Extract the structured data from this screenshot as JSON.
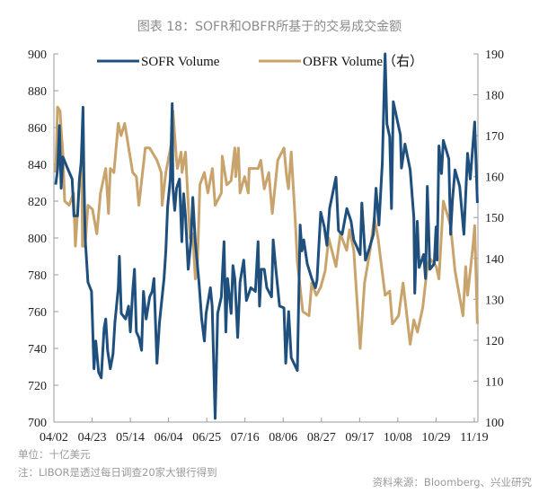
{
  "colors": {
    "sofr": "#1f4f7d",
    "obfr": "#c8a46c",
    "axis": "#9a9a9a"
  },
  "notes": {
    "unit": "单位：十亿美元",
    "note": "注：LIBOR是透过每日调查20家大银行得到",
    "source": "资料来源：Bloomberg、兴业研究"
  },
  "chart_data": {
    "type": "line",
    "title": "图表 18：SOFR和OBFR所基于的交易成交金额",
    "xlabel": "",
    "ylabel": "",
    "y2label": "",
    "x_unit": "days since 04/02",
    "xlim": [
      0,
      233
    ],
    "ylim": [
      700,
      900
    ],
    "y2lim": [
      100,
      190
    ],
    "grid": false,
    "legend_position": "top",
    "x_ticks": [
      {
        "day": 0,
        "label": "04/02"
      },
      {
        "day": 21,
        "label": "04/23"
      },
      {
        "day": 42,
        "label": "05/14"
      },
      {
        "day": 63,
        "label": "06/04"
      },
      {
        "day": 84,
        "label": "06/25"
      },
      {
        "day": 105,
        "label": "07/16"
      },
      {
        "day": 126,
        "label": "08/06"
      },
      {
        "day": 147,
        "label": "08/27"
      },
      {
        "day": 168,
        "label": "09/17"
      },
      {
        "day": 189,
        "label": "10/08"
      },
      {
        "day": 210,
        "label": "10/29"
      },
      {
        "day": 231,
        "label": "11/19"
      }
    ],
    "y_ticks": [
      "700",
      "720",
      "740",
      "760",
      "780",
      "800",
      "820",
      "840",
      "860",
      "880",
      "900"
    ],
    "y2_ticks": [
      "100",
      "110",
      "120",
      "130",
      "140",
      "150",
      "160",
      "170",
      "180",
      "190"
    ],
    "series": [
      {
        "name": "SOFR Volume",
        "axis": "left",
        "points": [
          [
            1,
            829
          ],
          [
            2,
            837
          ],
          [
            3,
            861
          ],
          [
            4,
            827
          ],
          [
            5,
            844
          ],
          [
            7,
            839
          ],
          [
            10,
            832
          ],
          [
            11,
            812
          ],
          [
            13,
            812
          ],
          [
            14,
            832
          ],
          [
            15,
            841
          ],
          [
            16,
            871
          ],
          [
            16.5,
            834
          ],
          [
            17.2,
            800
          ],
          [
            18.7,
            776
          ],
          [
            20.7,
            771
          ],
          [
            22,
            729
          ],
          [
            23,
            744
          ],
          [
            24.6,
            727
          ],
          [
            26,
            724
          ],
          [
            27.6,
            751
          ],
          [
            28.5,
            756
          ],
          [
            29.5,
            739
          ],
          [
            31,
            729
          ],
          [
            32.5,
            737
          ],
          [
            33.5,
            754
          ],
          [
            35.4,
            773
          ],
          [
            36,
            790
          ],
          [
            37,
            759
          ],
          [
            39.4,
            756
          ],
          [
            41,
            763
          ],
          [
            42,
            749
          ],
          [
            43.3,
            771
          ],
          [
            44.3,
            783
          ],
          [
            45.3,
            749
          ],
          [
            46.7,
            746
          ],
          [
            48.2,
            739
          ],
          [
            49.2,
            771
          ],
          [
            50.7,
            756
          ],
          [
            52.6,
            768
          ],
          [
            54,
            771
          ],
          [
            55,
            778
          ],
          [
            56.6,
            732
          ],
          [
            58,
            754
          ],
          [
            60.5,
            778
          ],
          [
            61.5,
            793
          ],
          [
            62.5,
            817
          ],
          [
            64,
            832
          ],
          [
            65,
            873
          ],
          [
            65.4,
            827
          ],
          [
            66.4,
            815
          ],
          [
            67.4,
            827
          ],
          [
            69,
            832
          ],
          [
            70.3,
            798
          ],
          [
            71.3,
            824
          ],
          [
            72.3,
            812
          ],
          [
            73.8,
            783
          ],
          [
            75.3,
            798
          ],
          [
            76.3,
            822
          ],
          [
            77.7,
            798
          ],
          [
            79.7,
            776
          ],
          [
            81.2,
            756
          ],
          [
            82.7,
            744
          ],
          [
            83.6,
            759
          ],
          [
            86,
            773
          ],
          [
            87,
            763
          ],
          [
            88.6,
            702
          ],
          [
            90,
            759
          ],
          [
            92,
            768
          ],
          [
            93.5,
            798
          ],
          [
            94.5,
            749
          ],
          [
            95.4,
            778
          ],
          [
            97.4,
            759
          ],
          [
            98.4,
            785
          ],
          [
            99.4,
            778
          ],
          [
            101,
            746
          ],
          [
            102.3,
            776
          ],
          [
            104.3,
            788
          ],
          [
            105.8,
            766
          ],
          [
            108.2,
            773
          ],
          [
            110.7,
            771
          ],
          [
            112.2,
            798
          ],
          [
            113,
            763
          ],
          [
            114,
            783
          ],
          [
            115.6,
            783
          ],
          [
            117,
            773
          ],
          [
            119.6,
            768
          ],
          [
            120.5,
            799
          ],
          [
            122,
            783
          ],
          [
            124,
            763
          ],
          [
            126.4,
            762
          ],
          [
            127.4,
            732
          ],
          [
            129,
            760
          ],
          [
            130.4,
            735
          ],
          [
            133.8,
            728
          ],
          [
            135.3,
            807
          ],
          [
            136.3,
            793
          ],
          [
            137.3,
            799
          ],
          [
            139.2,
            786
          ],
          [
            141.7,
            778
          ],
          [
            143.7,
            773
          ],
          [
            144.6,
            777
          ],
          [
            146.6,
            814
          ],
          [
            148.6,
            806
          ],
          [
            150,
            796
          ],
          [
            151.5,
            816
          ],
          [
            155,
            833
          ],
          [
            156.4,
            804
          ],
          [
            158.4,
            802
          ],
          [
            161,
            816
          ],
          [
            163.3,
            809
          ],
          [
            164.8,
            799
          ],
          [
            168.3,
            791
          ],
          [
            169.2,
            819
          ],
          [
            171.2,
            788
          ],
          [
            173.2,
            794
          ],
          [
            175.6,
            802
          ],
          [
            177,
            827
          ],
          [
            178.6,
            807
          ],
          [
            180.5,
            841
          ],
          [
            182,
            900
          ],
          [
            183,
            862
          ],
          [
            184.5,
            855
          ],
          [
            185.5,
            816
          ],
          [
            186.5,
            874
          ],
          [
            190.4,
            856
          ],
          [
            191,
            838
          ],
          [
            192.9,
            851
          ],
          [
            195.8,
            837
          ],
          [
            197.8,
            811
          ],
          [
            198.3,
            770
          ],
          [
            199.7,
            809
          ],
          [
            200.7,
            784
          ],
          [
            203.2,
            791
          ],
          [
            204.2,
            778
          ],
          [
            205.2,
            828
          ],
          [
            206.6,
            783
          ],
          [
            209,
            786
          ],
          [
            210,
            806
          ],
          [
            210.6,
            788
          ],
          [
            211.6,
            850
          ],
          [
            213,
            835
          ],
          [
            214,
            853
          ],
          [
            217,
            843
          ],
          [
            218,
            802
          ],
          [
            219,
            820
          ],
          [
            220.4,
            837
          ],
          [
            223,
            828
          ],
          [
            225.3,
            802
          ],
          [
            227.3,
            846
          ],
          [
            228.8,
            832
          ],
          [
            231.2,
            863
          ],
          [
            232.7,
            819
          ]
        ]
      },
      {
        "name": "OBFR Volume（右）",
        "axis": "right",
        "points": [
          [
            1,
            161
          ],
          [
            2,
            177
          ],
          [
            3.4,
            176
          ],
          [
            3.9,
            172
          ],
          [
            4.9,
            166
          ],
          [
            5.9,
            154
          ],
          [
            8.4,
            153
          ],
          [
            10.8,
            156
          ],
          [
            11.8,
            143
          ],
          [
            13.8,
            157
          ],
          [
            15.3,
            166
          ],
          [
            15.7,
            143
          ],
          [
            17.2,
            143
          ],
          [
            18.7,
            153
          ],
          [
            21.2,
            152
          ],
          [
            23.6,
            146
          ],
          [
            25.6,
            156
          ],
          [
            28.5,
            162
          ],
          [
            30,
            151
          ],
          [
            31,
            162
          ],
          [
            33,
            161
          ],
          [
            35.4,
            173
          ],
          [
            36.9,
            170
          ],
          [
            38.9,
            173
          ],
          [
            43.3,
            161
          ],
          [
            45.3,
            160
          ],
          [
            46.7,
            153
          ],
          [
            50.2,
            167
          ],
          [
            52.6,
            167
          ],
          [
            56.6,
            164
          ],
          [
            59,
            161
          ],
          [
            59.5,
            153
          ],
          [
            61.5,
            161
          ],
          [
            64.9,
            169
          ],
          [
            65.4,
            176
          ],
          [
            67.4,
            164
          ],
          [
            67.9,
            162
          ],
          [
            69.9,
            166
          ],
          [
            70.4,
            161
          ],
          [
            72.3,
            166
          ],
          [
            74.8,
            145
          ],
          [
            76.3,
            146
          ],
          [
            77.7,
            135
          ],
          [
            78.7,
            136
          ],
          [
            80.2,
            158
          ],
          [
            82.7,
            161
          ],
          [
            84.6,
            156
          ],
          [
            87.1,
            162
          ],
          [
            88.6,
            153
          ],
          [
            92,
            156
          ],
          [
            92.5,
            165
          ],
          [
            95,
            158
          ],
          [
            97.4,
            159
          ],
          [
            99.4,
            167
          ],
          [
            99.9,
            160
          ],
          [
            101.4,
            167
          ],
          [
            102.3,
            156
          ],
          [
            104.8,
            160
          ],
          [
            106.8,
            156
          ],
          [
            107.3,
            162
          ],
          [
            109.2,
            162
          ],
          [
            112.2,
            162
          ],
          [
            113.7,
            164
          ],
          [
            115.6,
            157
          ],
          [
            118.1,
            161
          ],
          [
            120,
            151
          ],
          [
            123,
            164
          ],
          [
            126.4,
            167
          ],
          [
            127.9,
            160
          ],
          [
            128.9,
            157
          ],
          [
            130.4,
            166
          ],
          [
            132.8,
            148
          ],
          [
            133.8,
            139
          ],
          [
            136.8,
            127
          ],
          [
            140.2,
            126
          ],
          [
            141.7,
            134
          ],
          [
            144.2,
            131
          ],
          [
            146.6,
            133
          ],
          [
            149.1,
            137
          ],
          [
            151,
            145
          ],
          [
            155,
            138
          ],
          [
            157.4,
            146
          ],
          [
            160.9,
            142
          ],
          [
            162.4,
            147
          ],
          [
            164.8,
            142
          ],
          [
            168.3,
            118
          ],
          [
            170.7,
            134
          ],
          [
            173.7,
            142
          ],
          [
            176.1,
            150
          ],
          [
            178.1,
            145
          ],
          [
            182,
            131
          ],
          [
            184.5,
            132
          ],
          [
            186,
            124
          ],
          [
            189.4,
            126
          ],
          [
            191.9,
            134
          ],
          [
            195.8,
            119
          ],
          [
            197.8,
            125
          ],
          [
            199.8,
            122
          ],
          [
            202.7,
            128
          ],
          [
            205.2,
            138
          ],
          [
            206.6,
            140
          ],
          [
            210.1,
            138
          ],
          [
            211.6,
            135
          ],
          [
            214,
            154
          ],
          [
            218,
            148
          ],
          [
            220.4,
            137
          ],
          [
            224.8,
            126
          ],
          [
            226.3,
            138
          ],
          [
            227.3,
            131
          ],
          [
            230.3,
            143
          ],
          [
            231.2,
            148
          ],
          [
            232.7,
            124
          ]
        ]
      }
    ]
  }
}
